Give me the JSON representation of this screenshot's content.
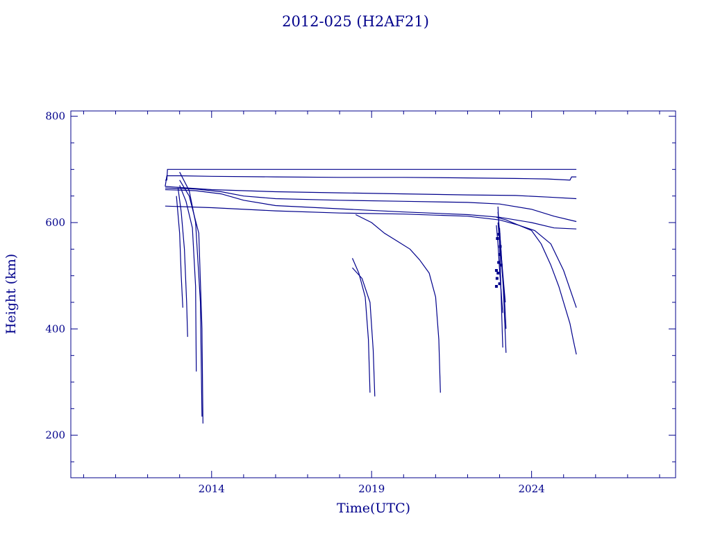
{
  "colors": {
    "ink": "#00008b",
    "background": "#ffffff"
  },
  "chart_data": {
    "type": "line",
    "title": "2012-025 (H2AF21)",
    "xlabel": "Time(UTC)",
    "ylabel": "Height (km)",
    "xlim": [
      2009.6,
      2028.5
    ],
    "ylim": [
      120,
      810
    ],
    "x_ticks": [
      2014,
      2019,
      2024
    ],
    "x_tick_labels": [
      "2014",
      "2019",
      "2024"
    ],
    "x_minor_step": 1,
    "y_ticks": [
      200,
      400,
      600,
      800
    ],
    "y_tick_labels": [
      "200",
      "400",
      "600",
      "800"
    ],
    "y_minor_step": 50,
    "grid": false,
    "series": [
      {
        "x": [
          2012.55,
          2012.6,
          2012.62,
          2012.8,
          2013.5,
          2014.5,
          2016,
          2018,
          2020,
          2022,
          2024,
          2025.4
        ],
        "y": [
          680,
          680,
          700,
          700,
          700,
          700,
          700,
          700,
          700,
          700,
          700,
          700
        ]
      },
      {
        "x": [
          2012.55,
          2012.6,
          2013,
          2014,
          2016,
          2018,
          2020,
          2022,
          2023.5,
          2024.5,
          2025.2,
          2025.25,
          2025.4
        ],
        "y": [
          668,
          688,
          688,
          687,
          686,
          685,
          685,
          684,
          683,
          682,
          680,
          686,
          686
        ]
      },
      {
        "x": [
          2012.55,
          2014,
          2016,
          2018,
          2020,
          2022,
          2023.5,
          2024.5,
          2025.4
        ],
        "y": [
          668,
          662,
          658,
          656,
          654,
          652,
          651,
          648,
          645
        ]
      },
      {
        "x": [
          2012.55,
          2013.5,
          2014.3,
          2015,
          2016,
          2018,
          2020,
          2022,
          2023,
          2024,
          2024.7,
          2025.4
        ],
        "y": [
          665,
          663,
          658,
          650,
          645,
          642,
          640,
          638,
          635,
          625,
          612,
          602
        ]
      },
      {
        "x": [
          2012.55,
          2013.5,
          2014.3,
          2015,
          2016,
          2018,
          2020,
          2022,
          2023,
          2024,
          2024.7,
          2025.4
        ],
        "y": [
          662,
          660,
          654,
          642,
          632,
          626,
          620,
          615,
          610,
          600,
          590,
          588
        ]
      },
      {
        "x": [
          2012.55,
          2014,
          2016,
          2018,
          2020,
          2022,
          2023,
          2023.6,
          2024.1,
          2024.6,
          2025,
          2025.4
        ],
        "y": [
          631,
          628,
          622,
          618,
          616,
          612,
          605,
          595,
          585,
          560,
          510,
          440
        ]
      },
      {
        "x": [
          2022.9,
          2023.2,
          2023.6,
          2024,
          2024.3,
          2024.6,
          2024.85,
          2025.05,
          2025.2,
          2025.3,
          2025.4
        ],
        "y": [
          610,
          605,
          595,
          585,
          560,
          520,
          480,
          440,
          410,
          380,
          352
        ]
      },
      {
        "x": [
          2012.9,
          2013.0,
          2013.05,
          2013.1
        ],
        "y": [
          650,
          580,
          500,
          440
        ]
      },
      {
        "x": [
          2012.95,
          2013.05,
          2013.15,
          2013.22,
          2013.25
        ],
        "y": [
          665,
          620,
          550,
          450,
          385
        ]
      },
      {
        "x": [
          2013.0,
          2013.2,
          2013.4,
          2013.5,
          2013.52
        ],
        "y": [
          670,
          640,
          590,
          480,
          320
        ]
      },
      {
        "x": [
          2013.0,
          2013.3,
          2013.5,
          2013.65,
          2013.7
        ],
        "y": [
          695,
          660,
          600,
          450,
          235
        ]
      },
      {
        "x": [
          2013.0,
          2013.3,
          2013.6,
          2013.7,
          2013.73
        ],
        "y": [
          680,
          650,
          580,
          400,
          222
        ]
      },
      {
        "x": [
          2018.4,
          2018.6,
          2018.8,
          2018.9,
          2018.95
        ],
        "y": [
          533,
          505,
          460,
          380,
          280
        ]
      },
      {
        "x": [
          2018.4,
          2018.7,
          2018.95,
          2019.05,
          2019.1
        ],
        "y": [
          515,
          495,
          450,
          360,
          273
        ]
      },
      {
        "x": [
          2018.5,
          2019,
          2019.4,
          2019.8,
          2020.2,
          2020.5,
          2020.8,
          2021.0,
          2021.1,
          2021.15
        ],
        "y": [
          615,
          600,
          580,
          565,
          550,
          530,
          505,
          460,
          380,
          280
        ]
      },
      {
        "x": [
          2022.95,
          2023.0,
          2023.05,
          2023.1
        ],
        "y": [
          630,
          560,
          460,
          365
        ]
      },
      {
        "x": [
          2022.95,
          2023.05,
          2023.12,
          2023.2
        ],
        "y": [
          620,
          545,
          470,
          355
        ]
      },
      {
        "x": [
          2022.95,
          2023.05,
          2023.15,
          2023.2
        ],
        "y": [
          600,
          530,
          460,
          400
        ]
      },
      {
        "x": [
          2022.9,
          2022.95,
          2023.0,
          2023.05,
          2023.1
        ],
        "y": [
          595,
          560,
          510,
          470,
          430
        ]
      },
      {
        "x": [
          2023.0,
          2023.05,
          2023.12,
          2023.18
        ],
        "y": [
          590,
          540,
          490,
          450
        ]
      }
    ],
    "markers": {
      "x": [
        2022.9,
        2022.92,
        2022.95,
        2022.97,
        2023.0,
        2023.02,
        2022.93,
        2022.98,
        2023.05,
        2022.9,
        2023.0
      ],
      "y": [
        480,
        495,
        505,
        525,
        540,
        555,
        570,
        578,
        520,
        510,
        485
      ]
    }
  }
}
